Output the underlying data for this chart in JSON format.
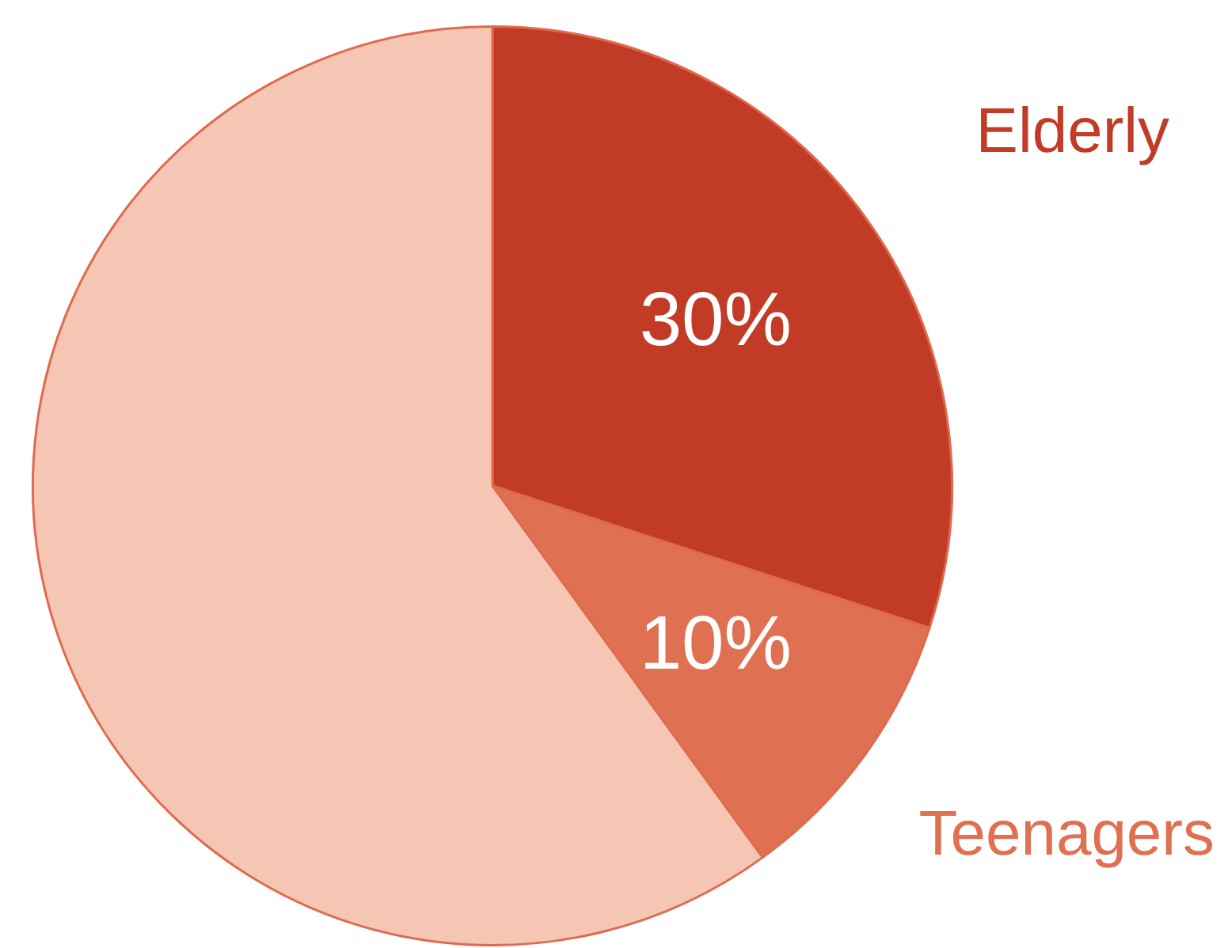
{
  "chart_data": {
    "type": "pie",
    "categories": [
      "Elderly",
      "Teenagers",
      null
    ],
    "values": [
      30,
      10,
      60
    ],
    "colors": [
      "#c13b26",
      "#e07052",
      "#f5c6b3"
    ],
    "value_labels": [
      "30%",
      "10%",
      null
    ],
    "legend": false
  }
}
